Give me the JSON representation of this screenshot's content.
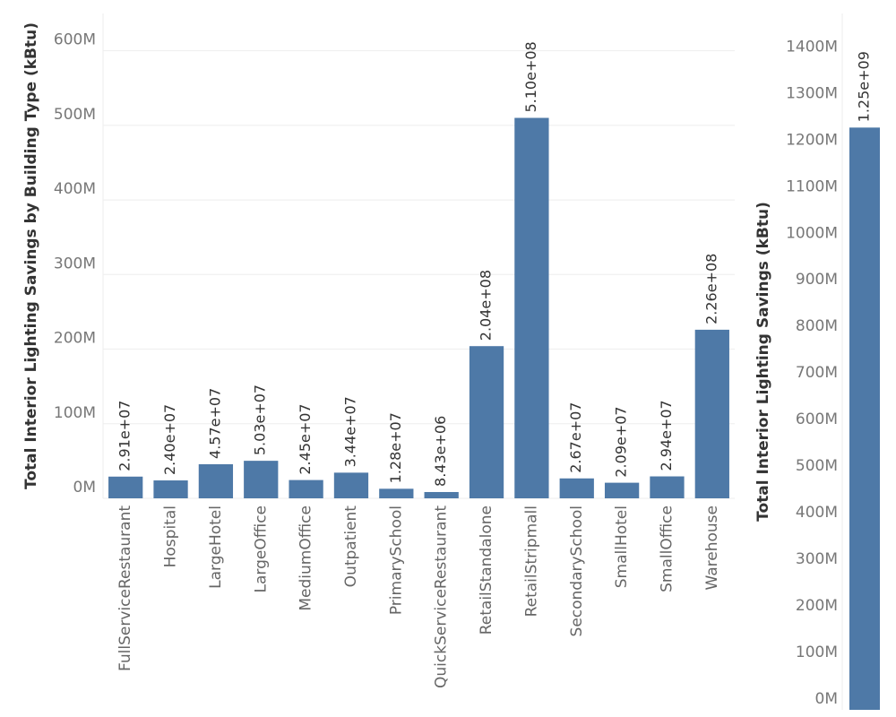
{
  "chart_data": [
    {
      "type": "bar",
      "y_label": "Total Interior Lighting Savings by Building Type (kBtu)",
      "categories": [
        "FullServiceRestaurant",
        "Hospital",
        "LargeHotel",
        "LargeOffice",
        "MediumOffice",
        "Outpatient",
        "PrimarySchool",
        "QuickServiceRestaurant",
        "RetailStandalone",
        "RetailStripmall",
        "SecondarySchool",
        "SmallHotel",
        "SmallOffice",
        "Warehouse"
      ],
      "values": [
        29100000,
        24000000,
        45700000,
        50300000,
        24500000,
        34400000,
        12800000,
        8430000,
        204000000,
        510000000,
        26700000,
        20900000,
        29400000,
        226000000
      ],
      "value_labels": [
        "2.91e+07",
        "2.40e+07",
        "4.57e+07",
        "5.03e+07",
        "2.45e+07",
        "3.44e+07",
        "1.28e+07",
        "8.43e+06",
        "2.04e+08",
        "5.10e+08",
        "2.67e+07",
        "2.09e+07",
        "2.94e+07",
        "2.26e+08"
      ],
      "color": "#4e79a7",
      "grid": true,
      "ylim": [
        0,
        650000000
      ],
      "yticks": [
        {
          "value": 0,
          "label": "0M"
        },
        {
          "value": 100000000,
          "label": "100M"
        },
        {
          "value": 200000000,
          "label": "200M"
        },
        {
          "value": 300000000,
          "label": "300M"
        },
        {
          "value": 400000000,
          "label": "400M"
        },
        {
          "value": 500000000,
          "label": "500M"
        },
        {
          "value": 600000000,
          "label": "600M"
        }
      ]
    },
    {
      "type": "bar",
      "y_label": "Total Interior Lighting Savings (kBtu)",
      "categories": [
        null
      ],
      "values": [
        1250000000
      ],
      "value_labels": [
        "1.25e+09"
      ],
      "color": "#4e79a7",
      "grid": false,
      "ylim": [
        0,
        1495000000
      ],
      "yticks": [
        {
          "value": 0,
          "label": "0M"
        },
        {
          "value": 100000000,
          "label": "100M"
        },
        {
          "value": 200000000,
          "label": "200M"
        },
        {
          "value": 300000000,
          "label": "300M"
        },
        {
          "value": 400000000,
          "label": "400M"
        },
        {
          "value": 500000000,
          "label": "500M"
        },
        {
          "value": 600000000,
          "label": "600M"
        },
        {
          "value": 700000000,
          "label": "700M"
        },
        {
          "value": 800000000,
          "label": "800M"
        },
        {
          "value": 900000000,
          "label": "900M"
        },
        {
          "value": 1000000000,
          "label": "1000M"
        },
        {
          "value": 1100000000,
          "label": "1100M"
        },
        {
          "value": 1200000000,
          "label": "1200M"
        },
        {
          "value": 1300000000,
          "label": "1300M"
        },
        {
          "value": 1400000000,
          "label": "1400M"
        }
      ]
    }
  ]
}
